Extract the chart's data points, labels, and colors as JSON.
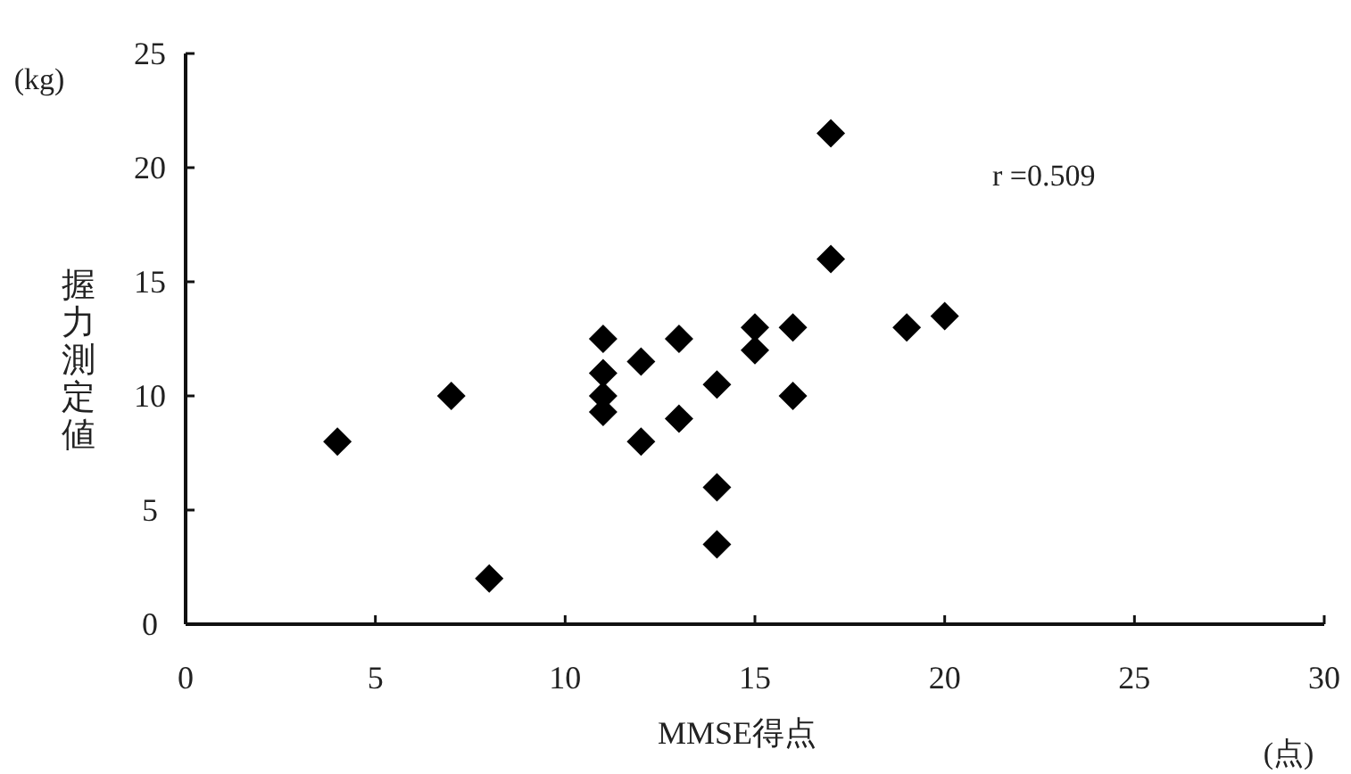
{
  "chart_data": {
    "type": "scatter",
    "xlabel": "MMSE得点",
    "ylabel": "握力測定値",
    "annotations": [
      "(kg)",
      "(点)",
      "r =0.509"
    ],
    "x": [
      4,
      7,
      8,
      11,
      11,
      11,
      11,
      12,
      12,
      13,
      13,
      14,
      14,
      14,
      15,
      15,
      16,
      16,
      17,
      17,
      19,
      20
    ],
    "values": [
      8,
      10,
      2,
      12.5,
      11,
      10,
      9.3,
      11.5,
      8,
      12.5,
      9,
      10.5,
      6,
      3.5,
      13,
      12,
      13,
      10,
      21.5,
      16,
      13,
      13.5
    ],
    "color": "#000000",
    "marker": "diamond",
    "grid": false,
    "xlim": [
      0,
      30
    ],
    "xticks": [
      0,
      5,
      10,
      15,
      20,
      25,
      30
    ],
    "ylim": [
      0,
      25
    ],
    "yticks": [
      0,
      5,
      10,
      15,
      20,
      25
    ]
  }
}
